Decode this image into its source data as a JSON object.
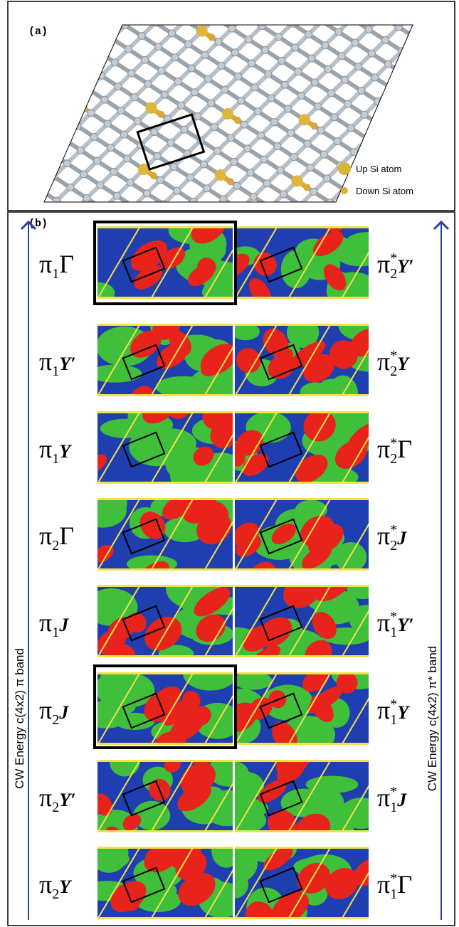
{
  "panel_a": {
    "label": "(a)",
    "legend": [
      "Up Si atom",
      "Down Si atom"
    ]
  },
  "panel_b": {
    "label": "(b)",
    "left_axis": "CW Energy c(4x2) π band",
    "right_axis": "CW Energy c(4x2) π* band",
    "rows": [
      {
        "left": {
          "symbol": "π",
          "sub": "1",
          "point": "Γ"
        },
        "right": {
          "symbol": "π",
          "sup": "*",
          "sub": "2",
          "point": "Y′"
        }
      },
      {
        "left": {
          "symbol": "π",
          "sub": "1",
          "point": "Y′"
        },
        "right": {
          "symbol": "π",
          "sup": "*",
          "sub": "2",
          "point": "Y"
        }
      },
      {
        "left": {
          "symbol": "π",
          "sub": "1",
          "point": "Y"
        },
        "right": {
          "symbol": "π",
          "sup": "*",
          "sub": "2",
          "point": "Γ"
        }
      },
      {
        "left": {
          "symbol": "π",
          "sub": "2",
          "point": "Γ"
        },
        "right": {
          "symbol": "π",
          "sup": "*",
          "sub": "2",
          "point": "J"
        }
      },
      {
        "left": {
          "symbol": "π",
          "sub": "1",
          "point": "J"
        },
        "right": {
          "symbol": "π",
          "sup": "*",
          "sub": "1",
          "point": "Y′"
        }
      },
      {
        "left": {
          "symbol": "π",
          "sub": "2",
          "point": "J"
        },
        "right": {
          "symbol": "π",
          "sup": "*",
          "sub": "1",
          "point": "Y"
        }
      },
      {
        "left": {
          "symbol": "π",
          "sub": "2",
          "point": "Y′"
        },
        "right": {
          "symbol": "π",
          "sup": "*",
          "sub": "1",
          "point": "J"
        }
      },
      {
        "left": {
          "symbol": "π",
          "sub": "2",
          "point": "Y"
        },
        "right": {
          "symbol": "π",
          "sup": "*",
          "sub": "1",
          "point": "Γ"
        }
      }
    ]
  }
}
